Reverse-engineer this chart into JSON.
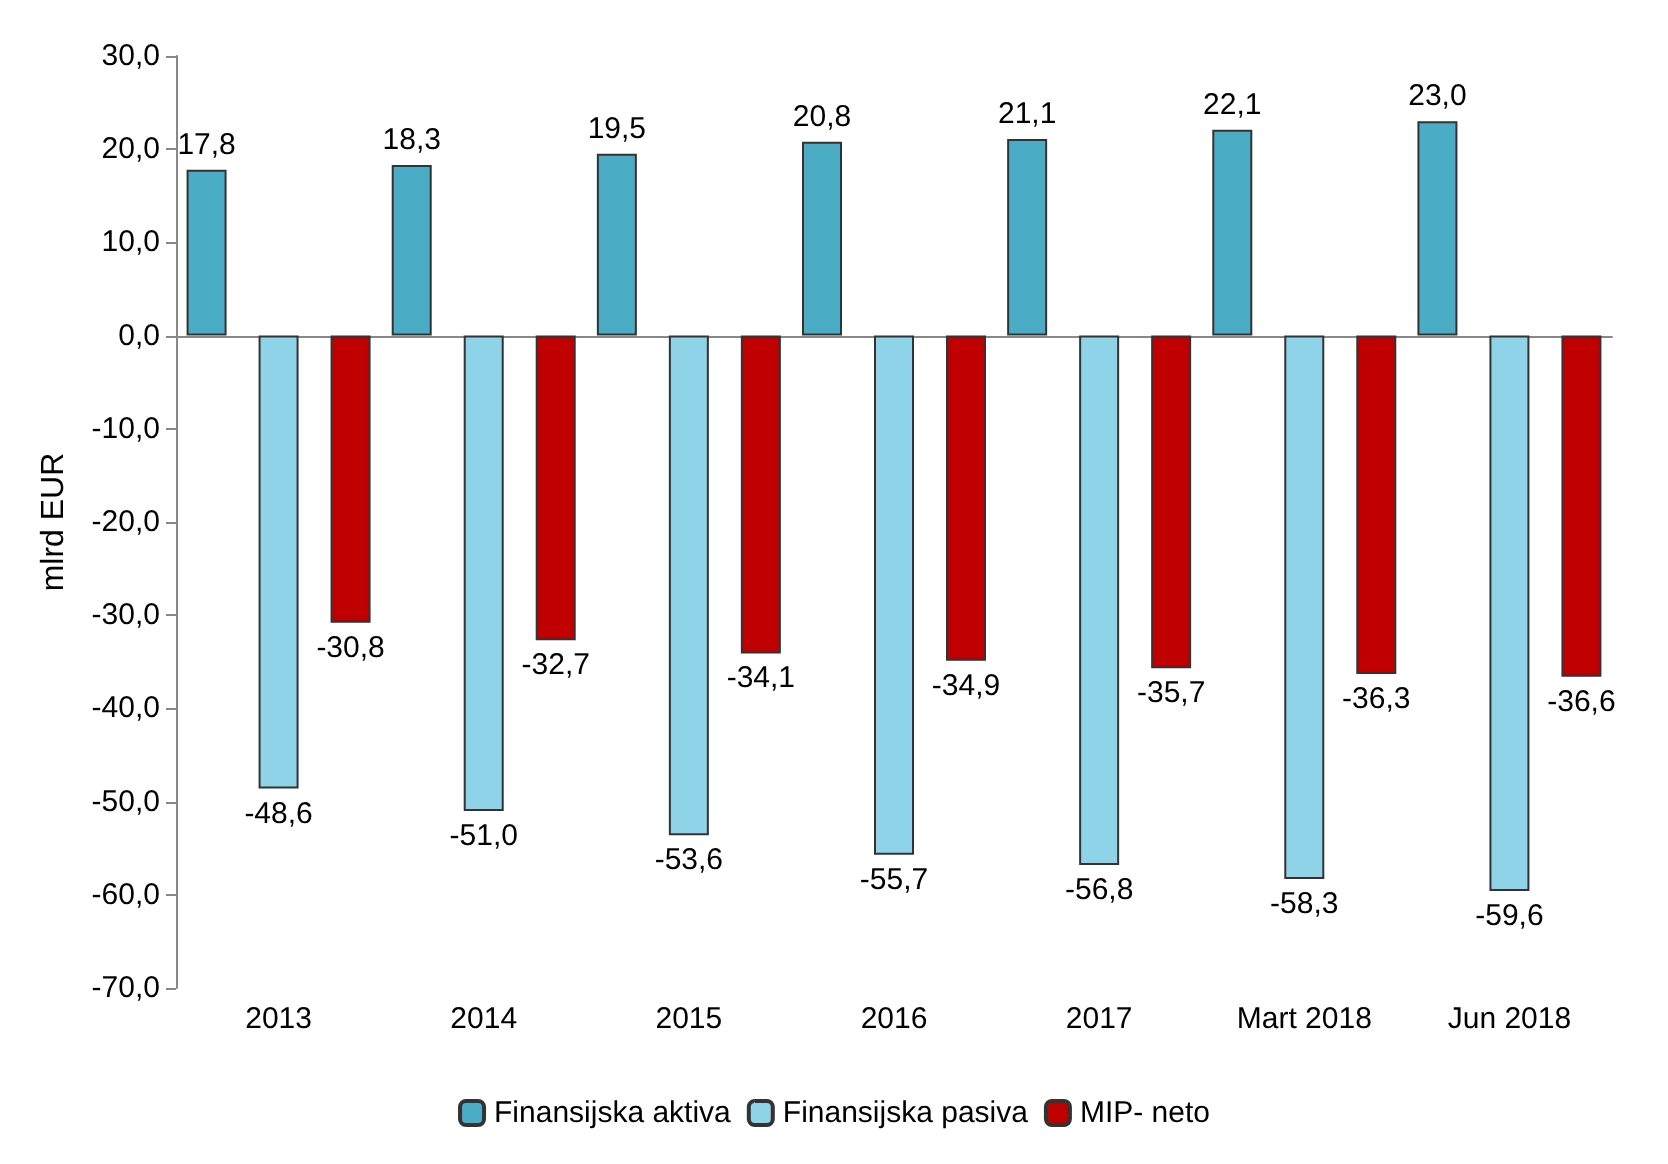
{
  "chart_data": {
    "type": "bar",
    "ylabel": "mlrd EUR",
    "categories": [
      "2013",
      "2014",
      "2015",
      "2016",
      "2017",
      "Mart 2018",
      "Jun 2018"
    ],
    "series": [
      {
        "name": "Finansijska aktiva",
        "color": "#4bacc6",
        "values": [
          17.8,
          18.3,
          19.5,
          20.8,
          21.1,
          22.1,
          23.0
        ],
        "value_labels": [
          "17,8",
          "18,3",
          "19,5",
          "20,8",
          "21,1",
          "22,1",
          "23,0"
        ]
      },
      {
        "name": "Finansijska pasiva",
        "color": "#8fd3e8",
        "values": [
          -48.6,
          -51.0,
          -53.6,
          -55.7,
          -56.8,
          -58.3,
          -59.6
        ],
        "value_labels": [
          "-48,6",
          "-51,0",
          "-53,6",
          "-55,7",
          "-56,8",
          "-58,3",
          "-59,6"
        ]
      },
      {
        "name": "MIP- neto",
        "color": "#c00000",
        "values": [
          -30.8,
          -32.7,
          -34.1,
          -34.9,
          -35.7,
          -36.3,
          -36.6
        ],
        "value_labels": [
          "-30,8",
          "-32,7",
          "-34,1",
          "-34,9",
          "-35,7",
          "-36,3",
          "-36,6"
        ]
      }
    ],
    "ylim": [
      -70,
      30
    ],
    "yticks": [
      {
        "value": -70,
        "label": "-70,0"
      },
      {
        "value": -60,
        "label": "-60,0"
      },
      {
        "value": -50,
        "label": "-50,0"
      },
      {
        "value": -40,
        "label": "-40,0"
      },
      {
        "value": -30,
        "label": "-30,0"
      },
      {
        "value": -20,
        "label": "-20,0"
      },
      {
        "value": -10,
        "label": "-10,0"
      },
      {
        "value": 0,
        "label": "0,0"
      },
      {
        "value": 10,
        "label": "10,0"
      },
      {
        "value": 20,
        "label": "20,0"
      },
      {
        "value": 30,
        "label": "30,0"
      }
    ],
    "legend": "bottom"
  }
}
